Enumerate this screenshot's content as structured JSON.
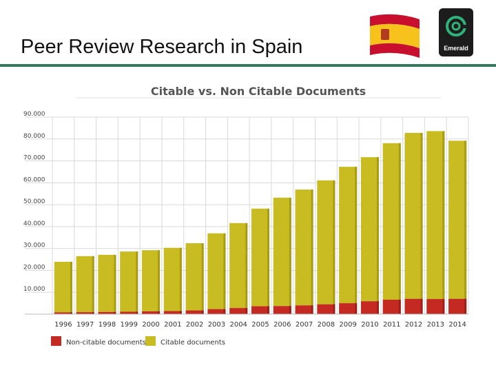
{
  "slide": {
    "title": "Peer Review Research in Spain",
    "logo_text": "Emerald",
    "flag_icon": "spain-flag-icon",
    "logo_icon": "emerald-logo-icon"
  },
  "colors": {
    "rule": "#2f7a5a",
    "citable": "#c9bc22",
    "non_citable": "#c42a22",
    "grid": "#d9d9d9"
  },
  "chart_data": {
    "type": "bar",
    "stacked": true,
    "title": "Citable vs. Non Citable Documents",
    "xlabel": "",
    "ylabel": "",
    "ylim": [
      0,
      90000
    ],
    "ytick_values": [
      10000,
      20000,
      30000,
      40000,
      50000,
      60000,
      70000,
      80000,
      90000
    ],
    "ytick_labels": [
      "10.000",
      "20.000",
      "30.000",
      "40.000",
      "50.000",
      "60.000",
      "70.000",
      "80.000",
      "90.000"
    ],
    "categories": [
      "1996",
      "1997",
      "1998",
      "1999",
      "2000",
      "2001",
      "2002",
      "2003",
      "2004",
      "2005",
      "2006",
      "2007",
      "2008",
      "2009",
      "2010",
      "2011",
      "2012",
      "2013",
      "2014"
    ],
    "series": [
      {
        "name": "Non-citable documents",
        "values": [
          800,
          900,
          1000,
          1100,
          1300,
          1400,
          1700,
          2300,
          2800,
          3600,
          3700,
          4000,
          4500,
          5000,
          5900,
          6600,
          7000,
          6900,
          7000
        ]
      },
      {
        "name": "Citable documents",
        "values": [
          23100,
          25600,
          26100,
          27500,
          27900,
          28900,
          30700,
          34600,
          38800,
          44600,
          49500,
          52900,
          56600,
          62300,
          65800,
          71500,
          75800,
          76700,
          72200
        ]
      }
    ],
    "legend": [
      "Non-citable documents",
      "Citable documents"
    ],
    "legend_position": "bottom-left",
    "grid": true
  }
}
